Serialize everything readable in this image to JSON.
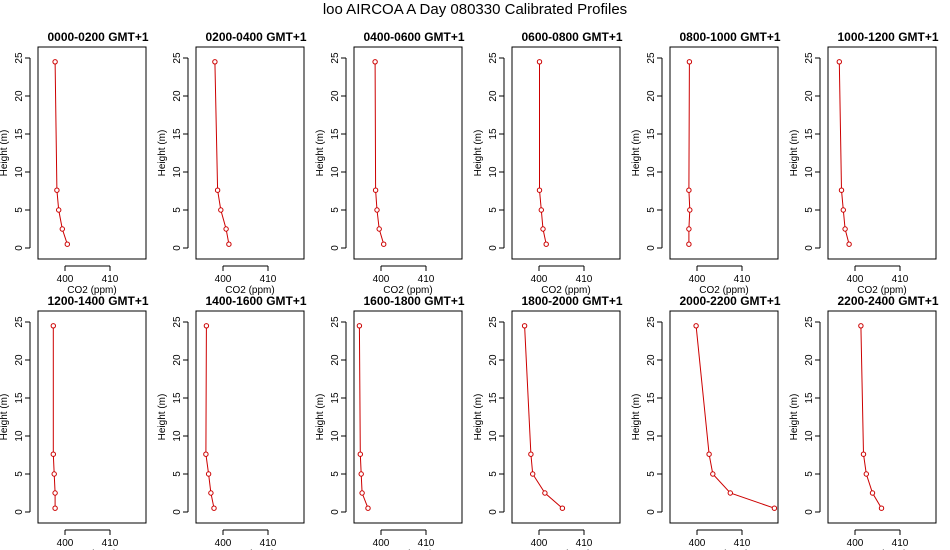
{
  "title": "loo AIRCOA A  Day 080330  Calibrated Profiles",
  "chart_data": {
    "type": "line",
    "xlabel": "CO2 (ppm)",
    "ylabel": "Height (m)",
    "xlim": [
      394,
      418
    ],
    "ylim": [
      0,
      25
    ],
    "x_ticks": [
      400,
      410
    ],
    "y_ticks": [
      0,
      5,
      10,
      15,
      20,
      25
    ],
    "color": "#cc0000",
    "heights": [
      24.5,
      7.6,
      5.0,
      2.5,
      0.5
    ],
    "panels": [
      {
        "title": "0000-0200 GMT+1",
        "co2": [
          397.8,
          398.2,
          398.6,
          399.4,
          400.5
        ]
      },
      {
        "title": "0200-0400 GMT+1",
        "co2": [
          398.2,
          398.8,
          399.5,
          400.7,
          401.3
        ]
      },
      {
        "title": "0400-0600 GMT+1",
        "co2": [
          398.7,
          398.8,
          399.1,
          399.6,
          400.6
        ]
      },
      {
        "title": "0600-0800 GMT+1",
        "co2": [
          400.1,
          400.1,
          400.5,
          400.9,
          401.6
        ]
      },
      {
        "title": "0800-1000 GMT+1",
        "co2": [
          398.3,
          398.2,
          398.4,
          398.2,
          398.2
        ]
      },
      {
        "title": "1000-1200 GMT+1",
        "co2": [
          396.5,
          397.0,
          397.4,
          397.8,
          398.7
        ]
      },
      {
        "title": "1200-1400 GMT+1",
        "co2": [
          397.4,
          397.4,
          397.6,
          397.8,
          397.8
        ]
      },
      {
        "title": "1400-1600 GMT+1",
        "co2": [
          396.3,
          396.2,
          396.8,
          397.3,
          398.0
        ]
      },
      {
        "title": "1600-1800 GMT+1",
        "co2": [
          395.2,
          395.4,
          395.6,
          395.8,
          397.1
        ]
      },
      {
        "title": "1800-2000 GMT+1",
        "co2": [
          396.8,
          398.2,
          398.6,
          401.3,
          405.2
        ]
      },
      {
        "title": "2000-2200 GMT+1",
        "co2": [
          399.8,
          402.7,
          403.5,
          407.4,
          417.2
        ]
      },
      {
        "title": "2200-2400 GMT+1",
        "co2": [
          401.3,
          401.9,
          402.5,
          403.9,
          405.9
        ]
      }
    ]
  }
}
